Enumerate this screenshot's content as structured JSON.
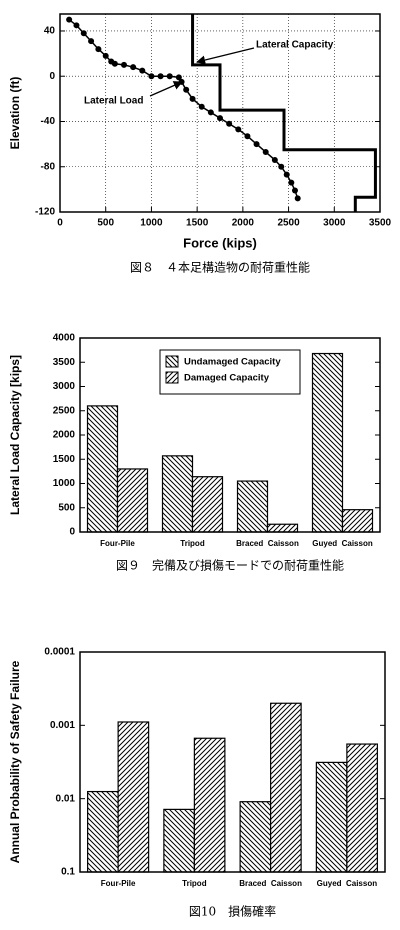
{
  "chart_data": [
    {
      "type": "line",
      "caption": "図８　４本足構造物の耐荷重性能",
      "xlabel": "Force (kips)",
      "ylabel": "Elevation (ft)",
      "xlim": [
        0,
        3500
      ],
      "xticks": [
        0,
        500,
        1000,
        1500,
        2000,
        2500,
        3000,
        3500
      ],
      "ylim": [
        -120,
        55
      ],
      "yticks": [
        -120,
        -80,
        -40,
        0,
        40
      ],
      "grid": true,
      "annotations": [
        "Lateral Capacity",
        "Lateral Load"
      ],
      "series": [
        {
          "name": "Lateral Capacity",
          "color": "#000000",
          "marker": "none",
          "width": 3,
          "x": [
            1450,
            1450,
            1750,
            1750,
            2450,
            2450,
            3450,
            3450,
            3230,
            3230
          ],
          "values": [
            55,
            10,
            10,
            -30,
            -30,
            -65,
            -65,
            -107,
            -107,
            -120
          ]
        },
        {
          "name": "Lateral Load",
          "color": "#000000",
          "marker": "circle",
          "width": 1.5,
          "x": [
            100,
            180,
            260,
            340,
            420,
            500,
            560,
            600,
            700,
            800,
            900,
            1000,
            1100,
            1200,
            1300,
            1330,
            1380,
            1450,
            1550,
            1650,
            1750,
            1850,
            1950,
            2050,
            2150,
            2250,
            2350,
            2420,
            2480,
            2530,
            2570,
            2600
          ],
          "values": [
            50,
            45,
            38,
            31,
            24,
            18,
            13,
            11,
            10,
            8,
            5,
            0,
            0,
            0,
            -1,
            -5,
            -12,
            -20,
            -27,
            -32,
            -37,
            -42,
            -47,
            -53,
            -60,
            -67,
            -74,
            -80,
            -87,
            -94,
            -101,
            -108
          ]
        }
      ]
    },
    {
      "type": "bar",
      "caption": "図９　完備及び損傷モードでの耐荷重性能",
      "ylabel": "Lateral Load Capacity [kips]",
      "categories": [
        "Four-Pile",
        "Tripod",
        "Braced  Caisson",
        "Guyed  Caisson"
      ],
      "ylim": [
        0,
        4000
      ],
      "yticks": [
        0,
        500,
        1000,
        1500,
        2000,
        2500,
        3000,
        3500,
        4000
      ],
      "legend": "upper center",
      "log": false,
      "series": [
        {
          "name": "Undamaged Capacity",
          "color": "#000000",
          "pattern": "backslash",
          "values": [
            2600,
            1570,
            1050,
            3680
          ]
        },
        {
          "name": "Damaged Capacity",
          "color": "#000000",
          "pattern": "slash",
          "values": [
            1300,
            1140,
            160,
            460
          ]
        }
      ]
    },
    {
      "type": "bar",
      "caption": "図10　損傷確率",
      "ylabel": "Annual Probability of Safety Failure",
      "categories": [
        "Four-Pile",
        "Tripod",
        "Braced  Caisson",
        "Guyed  Caisson"
      ],
      "ylim": [
        0.1,
        0.0001
      ],
      "yticks": [
        0.1,
        0.01,
        0.001,
        0.0001
      ],
      "log": true,
      "series": [
        {
          "color": "#000000",
          "pattern": "backslash",
          "values": [
            0.008,
            0.014,
            0.011,
            0.0032
          ]
        },
        {
          "color": "#000000",
          "pattern": "slash",
          "values": [
            0.0009,
            0.0015,
            0.0005,
            0.0018
          ]
        }
      ]
    }
  ]
}
